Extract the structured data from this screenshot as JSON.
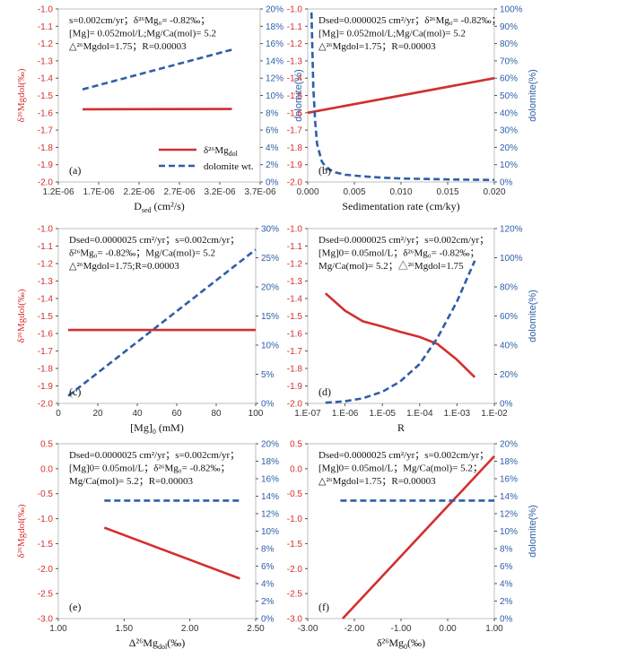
{
  "colors": {
    "red": "#d32f2f",
    "blue": "#2f5ea8",
    "axis": "#555555",
    "grid": "#bfbfbf"
  },
  "chart_data": [
    {
      "id": "a",
      "type": "line",
      "panel_label": "(a)",
      "xlim": [
        1.2e-06,
        3.7e-06
      ],
      "xticks": [
        1.2e-06,
        1.7e-06,
        2.2e-06,
        2.7e-06,
        3.2e-06,
        3.7e-06
      ],
      "xtick_labels": [
        "1.2E-06",
        "1.7E-06",
        "2.2E-06",
        "2.7E-06",
        "3.2E-06",
        "3.7E-06"
      ],
      "xlabel_main": "D",
      "xlabel_sub": "sed",
      "xlabel_tail": " (cm²/s)",
      "ylim_left": [
        -2.0,
        -1.0
      ],
      "yticks_left": [
        "-1.0",
        "-1.1",
        "-1.2",
        "-1.3",
        "-1.4",
        "-1.5",
        "-1.6",
        "-1.7",
        "-1.8",
        "-1.9",
        "-2.0"
      ],
      "ylim_right": [
        0,
        20
      ],
      "yticks_right": [
        "20%",
        "18%",
        "16%",
        "14%",
        "12%",
        "10%",
        "8%",
        "6%",
        "4%",
        "2%",
        "0%"
      ],
      "ylabel_left": "δ²⁶Mgdol(‰)",
      "ylabel_right": "dolomite(%)",
      "series": [
        {
          "name": "δ26Mgdol",
          "axis": "left",
          "style": "solid",
          "x": [
            1.5e-06,
            3.35e-06
          ],
          "y": [
            -1.58,
            -1.578
          ]
        },
        {
          "name": "dolomite wt.",
          "axis": "right",
          "style": "dashed",
          "x": [
            1.5e-06,
            3.35e-06
          ],
          "y": [
            10.7,
            15.3
          ]
        }
      ],
      "legend": {
        "position": "bottom-right",
        "entries": [
          "δ²⁶Mg",
          "dolomite wt."
        ],
        "subscript": "dol"
      },
      "annotation": [
        "s=0.002cm/yr；δ²⁶Mg₀= -0.82‰；",
        "[Mg]= 0.052mol/L;Mg/Ca(mol)= 5.2",
        "△²⁶Mgdol=1.75；R=0.00003"
      ]
    },
    {
      "id": "b",
      "type": "line",
      "panel_label": "(b)",
      "xlim": [
        0,
        0.02
      ],
      "xticks": [
        0,
        0.005,
        0.01,
        0.015,
        0.02
      ],
      "xtick_labels": [
        "0.000",
        "0.005",
        "0.010",
        "0.015",
        "0.020"
      ],
      "xlabel": "Sedimentation rate (cm/ky)",
      "ylim_left": [
        -2.0,
        -1.0
      ],
      "yticks_left": [
        "-1.0",
        "-1.1",
        "-1.2",
        "-1.3",
        "-1.4",
        "-1.5",
        "-1.6",
        "-1.7",
        "-1.8",
        "-1.9",
        "-2.0"
      ],
      "ylim_right": [
        0,
        100
      ],
      "yticks_right": [
        "100%",
        "90%",
        "80%",
        "70%",
        "60%",
        "50%",
        "40%",
        "30%",
        "20%",
        "10%",
        "0%"
      ],
      "ylabel_right": "dolomite(%)",
      "series": [
        {
          "name": "δ26Mgdol",
          "axis": "left",
          "style": "solid",
          "x": [
            0,
            0.02
          ],
          "y": [
            -1.6,
            -1.4
          ]
        },
        {
          "name": "dolomite wt.",
          "axis": "right",
          "style": "dashed",
          "x": [
            0.0004,
            0.0006,
            0.0008,
            0.001,
            0.0015,
            0.002,
            0.003,
            0.004,
            0.006,
            0.008,
            0.01,
            0.013,
            0.016,
            0.02
          ],
          "y": [
            98,
            55,
            35,
            22,
            12,
            8,
            5.5,
            4.2,
            3.2,
            2.5,
            2.0,
            1.7,
            1.4,
            1.2
          ]
        }
      ],
      "annotation": [
        "Dsed=0.0000025 cm²/yr；δ²⁶Mg₀= -0.82‰；",
        "[Mg]= 0.052mol/L;Mg/Ca(mol)= 5.2",
        "△²⁶Mgdol=1.75；R=0.00003"
      ]
    },
    {
      "id": "c",
      "type": "line",
      "panel_label": "(c)",
      "xlim": [
        0,
        100
      ],
      "xticks": [
        0,
        20,
        40,
        60,
        80,
        100
      ],
      "xtick_labels": [
        "0",
        "20",
        "40",
        "60",
        "80",
        "100"
      ],
      "xlabel_main": "[Mg]",
      "xlabel_sub": "0",
      "xlabel_tail": " (mM)",
      "ylim_left": [
        -2.0,
        -1.0
      ],
      "yticks_left": [
        "-1.0",
        "-1.1",
        "-1.2",
        "-1.3",
        "-1.4",
        "-1.5",
        "-1.6",
        "-1.7",
        "-1.8",
        "-1.9",
        "-2.0"
      ],
      "ylim_right": [
        0,
        30
      ],
      "yticks_right": [
        "30%",
        "25%",
        "20%",
        "15%",
        "10%",
        "5%",
        "0%"
      ],
      "ylabel_left": "δ²⁶Mgdol(‰)",
      "series": [
        {
          "name": "δ26Mgdol",
          "axis": "left",
          "style": "solid",
          "x": [
            5,
            100
          ],
          "y": [
            -1.58,
            -1.58
          ]
        },
        {
          "name": "dolomite wt.",
          "axis": "right",
          "style": "dashed",
          "x": [
            5,
            100
          ],
          "y": [
            1.3,
            26.4
          ]
        }
      ],
      "annotation": [
        "Dsed=0.0000025 cm²/yr；s=0.002cm/yr；",
        "δ²⁶Mg₀= -0.82‰；Mg/Ca(mol)= 5.2",
        "△²⁶Mgdol=1.75;R=0.00003"
      ]
    },
    {
      "id": "d",
      "type": "line",
      "panel_label": "(d)",
      "xscale": "log",
      "xlim": [
        1e-07,
        0.01
      ],
      "xticks": [
        1e-07,
        1e-06,
        1e-05,
        0.0001,
        0.001,
        0.01
      ],
      "xtick_labels": [
        "1.E-07",
        "1.E-06",
        "1.E-05",
        "1.E-04",
        "1.E-03",
        "1.E-02"
      ],
      "xlabel": "R",
      "ylim_left": [
        -2.0,
        -1.0
      ],
      "yticks_left": [
        "-1.0",
        "-1.1",
        "-1.2",
        "-1.3",
        "-1.4",
        "-1.5",
        "-1.6",
        "-1.7",
        "-1.8",
        "-1.9",
        "-2.0"
      ],
      "ylim_right": [
        0,
        120
      ],
      "yticks_right": [
        "120%",
        "100%",
        "80%",
        "60%",
        "40%",
        "20%",
        "0%"
      ],
      "ylabel_right": "dolomite(%)",
      "series": [
        {
          "name": "δ26Mgdol",
          "axis": "left",
          "style": "solid",
          "x": [
            3e-07,
            1e-06,
            3e-06,
            1e-05,
            3e-05,
            0.0001,
            0.0003,
            0.001,
            0.003
          ],
          "y": [
            -1.37,
            -1.47,
            -1.53,
            -1.56,
            -1.59,
            -1.62,
            -1.66,
            -1.75,
            -1.85
          ]
        },
        {
          "name": "dolomite wt.",
          "axis": "right",
          "style": "dashed",
          "x": [
            3e-07,
            1e-06,
            3e-06,
            1e-05,
            3e-05,
            0.0001,
            0.0003,
            0.001,
            0.003
          ],
          "y": [
            0.5,
            1.5,
            3.5,
            8,
            15,
            27,
            45,
            70,
            98
          ]
        }
      ],
      "annotation": [
        "Dsed=0.0000025 cm²/yr；s=0.002cm/yr；",
        "[Mg]0= 0.05mol/L；δ²⁶Mg₀= -0.82‰；",
        "Mg/Ca(mol)= 5.2；△²⁶Mgdol=1.75"
      ]
    },
    {
      "id": "e",
      "type": "line",
      "panel_label": "(e)",
      "xlim": [
        1.0,
        2.5
      ],
      "xticks": [
        1.0,
        1.5,
        2.0,
        2.5
      ],
      "xtick_labels": [
        "1.00",
        "1.50",
        "2.00",
        "2.50"
      ],
      "xlabel_main": "Δ²⁶Mg",
      "xlabel_sub": "dol",
      "xlabel_tail": "(‰)",
      "ylim_left": [
        -3.0,
        0.5
      ],
      "yticks_left": [
        "0.5",
        "0.0",
        "-0.5",
        "-1.0",
        "-1.5",
        "-2.0",
        "-2.5",
        "-3.0"
      ],
      "ylim_right": [
        0,
        20
      ],
      "yticks_right": [
        "20%",
        "18%",
        "16%",
        "14%",
        "12%",
        "10%",
        "8%",
        "6%",
        "4%",
        "2%",
        "0%"
      ],
      "ylabel_left": "δ²⁶Mgdol(‰)",
      "series": [
        {
          "name": "δ26Mgdol",
          "axis": "left",
          "style": "solid",
          "x": [
            1.35,
            2.38
          ],
          "y": [
            -1.18,
            -2.2
          ]
        },
        {
          "name": "dolomite wt.",
          "axis": "right",
          "style": "dashed",
          "x": [
            1.35,
            2.38
          ],
          "y": [
            13.5,
            13.5
          ]
        }
      ],
      "annotation": [
        "Dsed=0.0000025 cm²/yr；s=0.002cm/yr；",
        "[Mg]0= 0.05mol/L；δ²⁶Mg₀= -0.82‰；",
        "Mg/Ca(mol)= 5.2；R=0.00003"
      ]
    },
    {
      "id": "f",
      "type": "line",
      "panel_label": "(f)",
      "xlim": [
        -3.0,
        1.0
      ],
      "xticks": [
        -3.0,
        -2.0,
        -1.0,
        0.0,
        1.0
      ],
      "xtick_labels": [
        "-3.00",
        "-2.00",
        "-1.00",
        "0.00",
        "1.00"
      ],
      "xlabel_main": "δ²⁶Mg",
      "xlabel_sub": "0",
      "xlabel_tail": "(‰)",
      "ylim_left": [
        -3.0,
        0.5
      ],
      "yticks_left": [
        "0.5",
        "0.0",
        "-0.5",
        "-1.0",
        "-1.5",
        "-2.0",
        "-2.5",
        "-3.0"
      ],
      "ylim_right": [
        0,
        20
      ],
      "yticks_right": [
        "20%",
        "18%",
        "16%",
        "14%",
        "12%",
        "10%",
        "8%",
        "6%",
        "4%",
        "2%",
        "0%"
      ],
      "ylabel_right": "dolomite(%)",
      "series": [
        {
          "name": "δ26Mgdol",
          "axis": "left",
          "style": "solid",
          "x": [
            -2.25,
            1.0
          ],
          "y": [
            -3.0,
            0.25
          ]
        },
        {
          "name": "dolomite wt.",
          "axis": "right",
          "style": "dashed",
          "x": [
            -2.3,
            1.0
          ],
          "y": [
            13.5,
            13.5
          ]
        }
      ],
      "annotation": [
        "Dsed=0.0000025 cm²/yr；s=0.002cm/yr；",
        "[Mg]0= 0.05mol/L；Mg/Ca(mol)= 5.2；",
        "△²⁶Mgdol=1.75；R=0.00003"
      ]
    }
  ]
}
